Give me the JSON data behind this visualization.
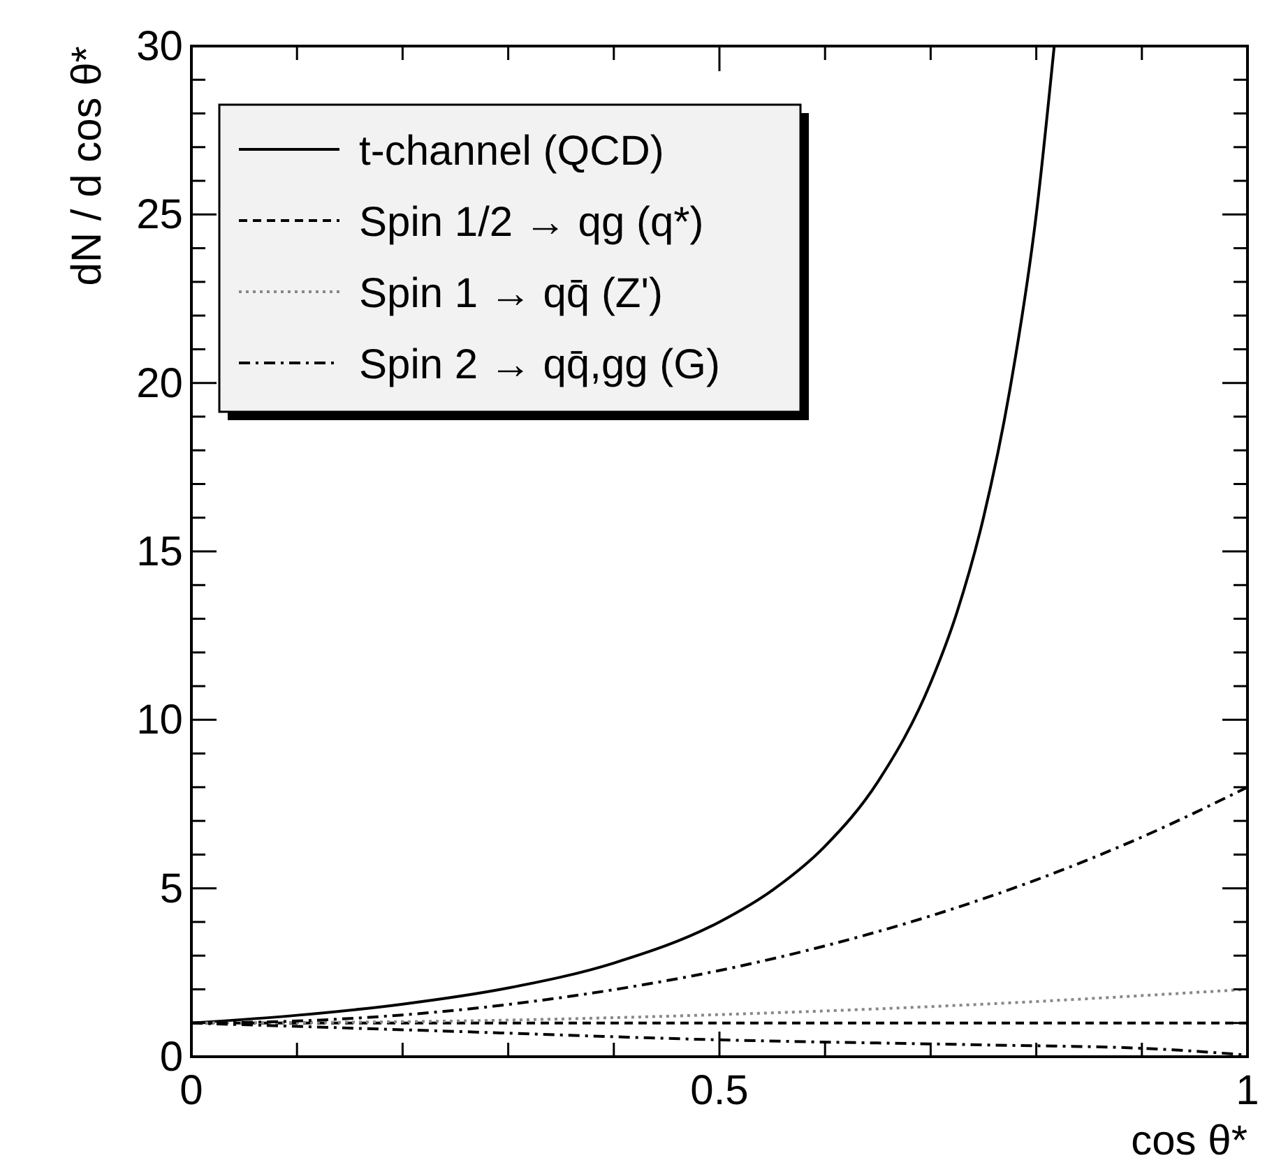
{
  "chart_data": {
    "type": "line",
    "xlabel": "cos θ*",
    "ylabel": "dN / d cos θ*",
    "xlim": [
      0,
      1
    ],
    "ylim": [
      0,
      30
    ],
    "xticks": [
      0,
      {
        "value": 0.1,
        "label": null
      },
      {
        "value": 0.2,
        "label": null
      },
      {
        "value": 0.3,
        "label": null
      },
      {
        "value": 0.4,
        "label": null
      },
      0.5,
      {
        "value": 0.6,
        "label": null
      },
      {
        "value": 0.7,
        "label": null
      },
      {
        "value": 0.8,
        "label": null
      },
      {
        "value": 0.9,
        "label": null
      },
      1
    ],
    "yticks": [
      0,
      {
        "value": 1,
        "label": null
      },
      {
        "value": 2,
        "label": null
      },
      {
        "value": 3,
        "label": null
      },
      {
        "value": 4,
        "label": null
      },
      5,
      {
        "value": 6,
        "label": null
      },
      {
        "value": 7,
        "label": null
      },
      {
        "value": 8,
        "label": null
      },
      {
        "value": 9,
        "label": null
      },
      10,
      {
        "value": 11,
        "label": null
      },
      {
        "value": 12,
        "label": null
      },
      {
        "value": 13,
        "label": null
      },
      {
        "value": 14,
        "label": null
      },
      15,
      {
        "value": 16,
        "label": null
      },
      {
        "value": 17,
        "label": null
      },
      {
        "value": 18,
        "label": null
      },
      {
        "value": 19,
        "label": null
      },
      20,
      {
        "value": 21,
        "label": null
      },
      {
        "value": 22,
        "label": null
      },
      {
        "value": 23,
        "label": null
      },
      {
        "value": 24,
        "label": null
      },
      25,
      {
        "value": 26,
        "label": null
      },
      {
        "value": 27,
        "label": null
      },
      {
        "value": 28,
        "label": null
      },
      {
        "value": 29,
        "label": null
      },
      30
    ],
    "grid": false,
    "legend": "top left",
    "marker": "none",
    "series": [
      {
        "name": "t-channel (QCD)",
        "color": "#000000",
        "line_style": "solid",
        "x": [
          0,
          0.1,
          0.2,
          0.3,
          0.4,
          0.5,
          0.55,
          0.6,
          0.65,
          0.7,
          0.725,
          0.75,
          0.775,
          0.8,
          0.817
        ],
        "values": [
          1,
          1.23,
          1.56,
          2.04,
          2.78,
          4,
          4.94,
          6.25,
          8.16,
          11.1,
          13.2,
          16,
          19.8,
          25,
          30
        ]
      },
      {
        "name": "Spin 1/2 → qg (q*)",
        "color": "#000000",
        "line_style": "dashed",
        "x": [
          0,
          1
        ],
        "values": [
          1,
          1
        ]
      },
      {
        "name": "Spin 1 → qq̄ (Z')",
        "color": "#888888",
        "line_style": "dotted",
        "x": [
          0,
          0.25,
          0.5,
          0.75,
          1
        ],
        "values": [
          1,
          1.06,
          1.25,
          1.56,
          2
        ]
      },
      {
        "name": "Spin 2 → qq̄,gg (G)",
        "color": "#000000",
        "line_style": "dashdot",
        "x": [
          0,
          0.1,
          0.2,
          0.3,
          0.4,
          0.5,
          0.6,
          0.7,
          0.8,
          0.9,
          1
        ],
        "values": [
          1,
          1.06,
          1.24,
          1.55,
          1.99,
          2.56,
          3.29,
          4.18,
          5.25,
          6.52,
          8
        ]
      },
      {
        "color": "#000000",
        "line_style": "dashdot",
        "x": [
          0,
          0.25,
          0.5,
          0.75,
          0.9,
          1
        ],
        "values": [
          1,
          0.75,
          0.5,
          0.35,
          0.25,
          0.05
        ]
      }
    ]
  }
}
